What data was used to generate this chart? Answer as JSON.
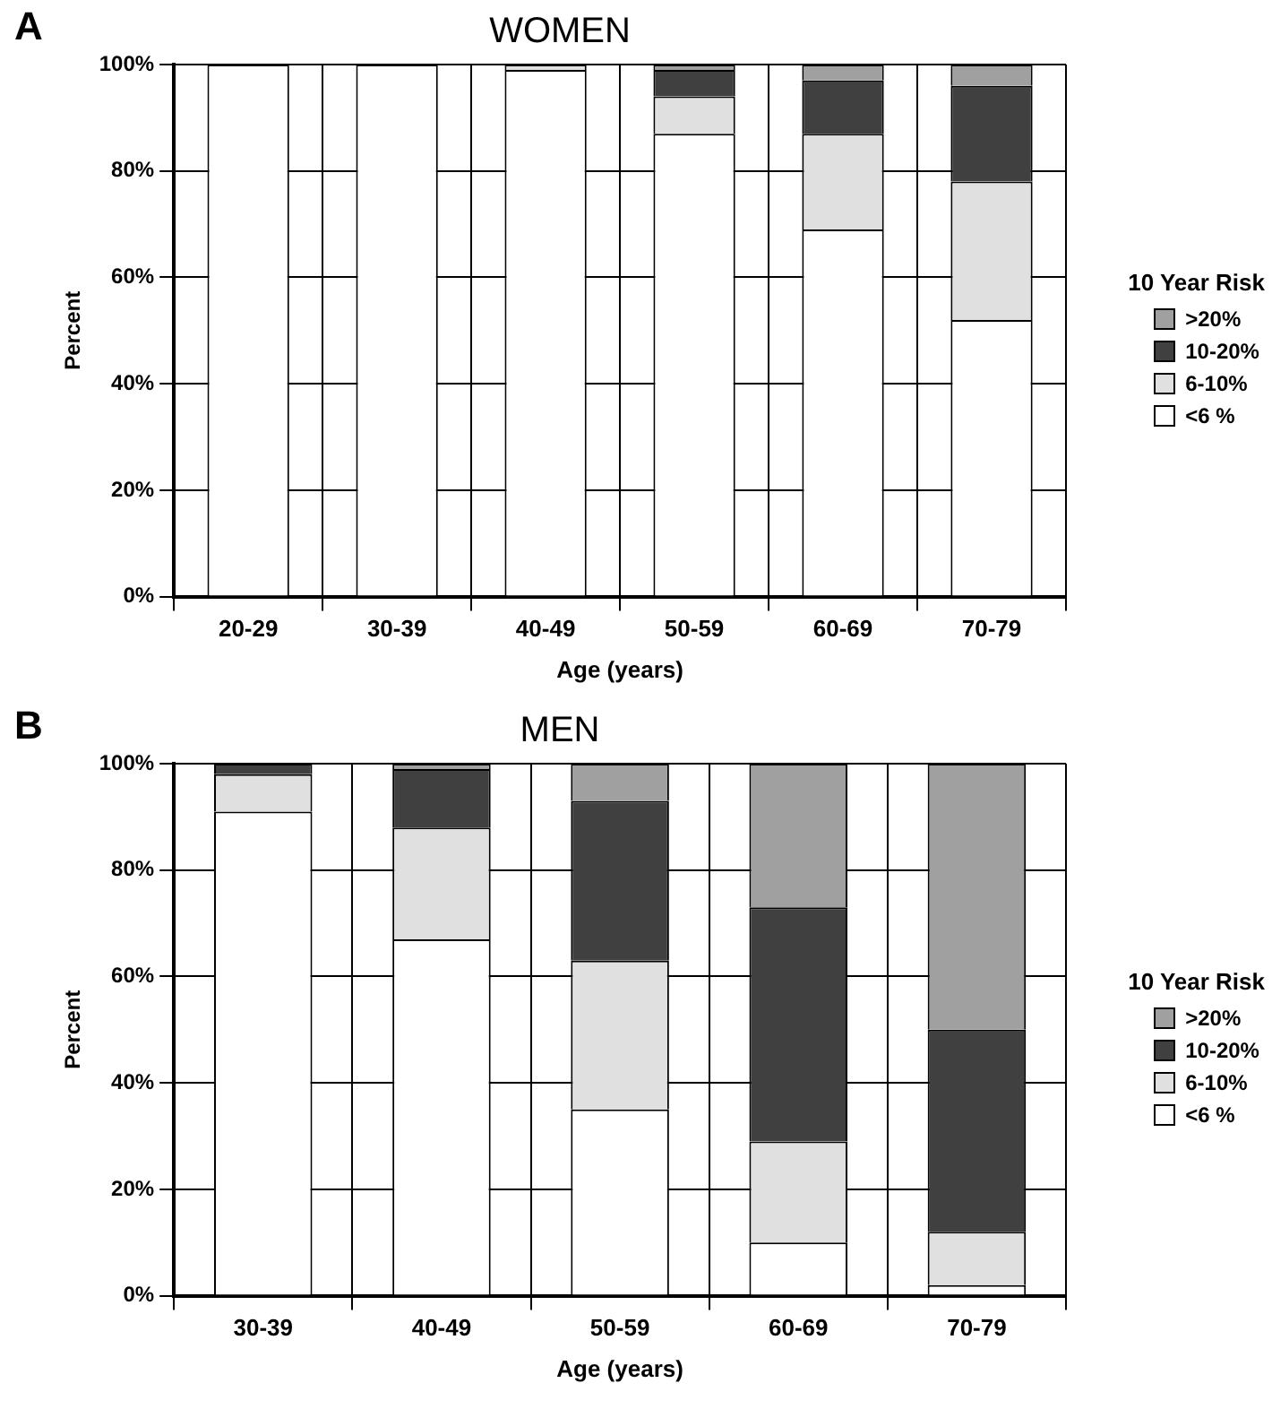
{
  "chart_data": [
    {
      "type": "bar",
      "title": "WOMEN",
      "annotations": [
        "A"
      ],
      "xlabel": "Age (years)",
      "ylabel": "Percent",
      "legend_title": "10 Year Risk",
      "legend": "right",
      "grid": true,
      "stacked": true,
      "categories": [
        "20-29",
        "30-39",
        "40-49",
        "50-59",
        "60-69",
        "70-79"
      ],
      "ylim": [
        0,
        100
      ],
      "yticks": [
        {
          "value": 0,
          "label": "0%"
        },
        {
          "value": 20,
          "label": "20%"
        },
        {
          "value": 40,
          "label": "40%"
        },
        {
          "value": 60,
          "label": "60%"
        },
        {
          "value": 80,
          "label": "80%"
        },
        {
          "value": 100,
          "label": "100%"
        }
      ],
      "series": [
        {
          "name": "<6 %",
          "color": "#ffffff",
          "values": [
            100,
            100,
            99,
            87,
            69,
            52
          ]
        },
        {
          "name": "6-10%",
          "color": "#e0e0e0",
          "values": [
            0,
            0,
            1,
            7,
            18,
            26
          ]
        },
        {
          "name": "10-20%",
          "color": "#404040",
          "values": [
            0,
            0,
            0,
            5,
            10,
            18
          ]
        },
        {
          "name": ">20%",
          "color": "#a0a0a0",
          "values": [
            0,
            0,
            0,
            1,
            3,
            4
          ]
        }
      ]
    },
    {
      "type": "bar",
      "title": "MEN",
      "annotations": [
        "B"
      ],
      "xlabel": "Age (years)",
      "ylabel": "Percent",
      "legend_title": "10 Year Risk",
      "legend": "right",
      "grid": true,
      "stacked": true,
      "categories": [
        "30-39",
        "40-49",
        "50-59",
        "60-69",
        "70-79"
      ],
      "ylim": [
        0,
        100
      ],
      "yticks": [
        {
          "value": 0,
          "label": "0%"
        },
        {
          "value": 20,
          "label": "20%"
        },
        {
          "value": 40,
          "label": "40%"
        },
        {
          "value": 60,
          "label": "60%"
        },
        {
          "value": 80,
          "label": "80%"
        },
        {
          "value": 100,
          "label": "100%"
        }
      ],
      "series": [
        {
          "name": "<6 %",
          "color": "#ffffff",
          "values": [
            91,
            67,
            35,
            10,
            2
          ]
        },
        {
          "name": "6-10%",
          "color": "#e0e0e0",
          "values": [
            7,
            21,
            28,
            19,
            10
          ]
        },
        {
          "name": "10-20%",
          "color": "#404040",
          "values": [
            2,
            11,
            30,
            44,
            38
          ]
        },
        {
          "name": ">20%",
          "color": "#a0a0a0",
          "values": [
            0,
            1,
            7,
            27,
            50
          ]
        }
      ]
    }
  ]
}
